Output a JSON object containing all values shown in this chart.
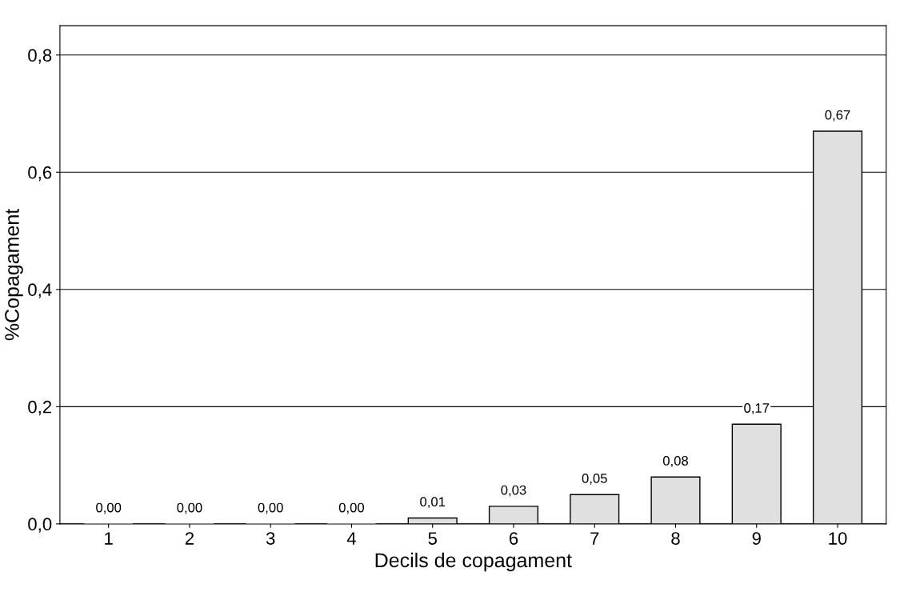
{
  "chart_data": {
    "type": "bar",
    "xlabel": "Decils de copagament",
    "ylabel": "%Copagament",
    "categories": [
      "1",
      "2",
      "3",
      "4",
      "5",
      "6",
      "7",
      "8",
      "9",
      "10"
    ],
    "values": [
      0.0,
      0.0,
      0.0,
      0.0,
      0.01,
      0.03,
      0.05,
      0.08,
      0.17,
      0.67
    ],
    "color": "#e0e0e0",
    "value_labels": [
      "0,00",
      "0,00",
      "0,00",
      "0,00",
      "0,01",
      "0,03",
      "0,05",
      "0,08",
      "0,17",
      "0,67"
    ],
    "ylim": [
      0,
      0.85
    ],
    "yticks": [
      {
        "value": 0,
        "label": "0,0"
      },
      {
        "value": 0.2,
        "label": "0,2"
      },
      {
        "value": 0.4,
        "label": "0,4"
      },
      {
        "value": 0.6,
        "label": "0,6"
      },
      {
        "value": 0.8,
        "label": "0,8"
      }
    ],
    "grid": "y"
  }
}
